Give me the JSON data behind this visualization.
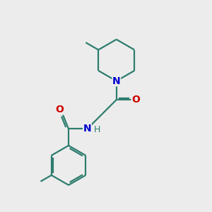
{
  "background_color": "#ececec",
  "bond_color": "#2d7d6e",
  "N_color": "#0000cc",
  "O_color": "#cc0000",
  "line_width": 1.6,
  "font_size": 10,
  "fig_size": [
    3.0,
    3.0
  ],
  "dpi": 100,
  "xlim": [
    0,
    10
  ],
  "ylim": [
    0,
    10
  ]
}
